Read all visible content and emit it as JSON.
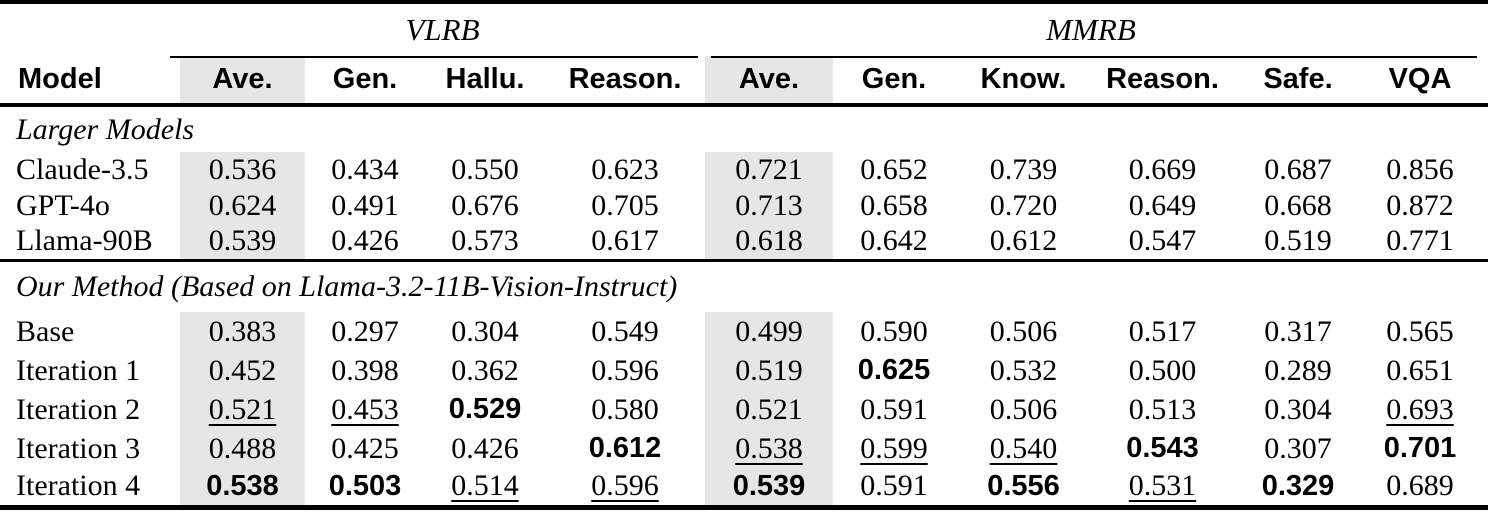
{
  "table": {
    "shade_color": "#e6e6e6",
    "text_color": "#000000",
    "groups": [
      {
        "label": "VLRB",
        "span": 4
      },
      {
        "label": "MMRB",
        "span": 6
      }
    ],
    "columns": [
      "Model",
      "Ave.",
      "Gen.",
      "Hallu.",
      "Reason.",
      "Ave.",
      "Gen.",
      "Know.",
      "Reason.",
      "Safe.",
      "VQA"
    ],
    "shaded_value_columns": [
      0,
      4
    ],
    "sections": [
      {
        "title": "Larger Models",
        "rows": [
          {
            "model": "Claude-3.5",
            "values": [
              {
                "t": "0.536",
                "s": "plain"
              },
              {
                "t": "0.434",
                "s": "plain"
              },
              {
                "t": "0.550",
                "s": "plain"
              },
              {
                "t": "0.623",
                "s": "plain"
              },
              {
                "t": "0.721",
                "s": "plain"
              },
              {
                "t": "0.652",
                "s": "plain"
              },
              {
                "t": "0.739",
                "s": "plain"
              },
              {
                "t": "0.669",
                "s": "plain"
              },
              {
                "t": "0.687",
                "s": "plain"
              },
              {
                "t": "0.856",
                "s": "plain"
              }
            ]
          },
          {
            "model": "GPT-4o",
            "values": [
              {
                "t": "0.624",
                "s": "plain"
              },
              {
                "t": "0.491",
                "s": "plain"
              },
              {
                "t": "0.676",
                "s": "plain"
              },
              {
                "t": "0.705",
                "s": "plain"
              },
              {
                "t": "0.713",
                "s": "plain"
              },
              {
                "t": "0.658",
                "s": "plain"
              },
              {
                "t": "0.720",
                "s": "plain"
              },
              {
                "t": "0.649",
                "s": "plain"
              },
              {
                "t": "0.668",
                "s": "plain"
              },
              {
                "t": "0.872",
                "s": "plain"
              }
            ]
          },
          {
            "model": "Llama-90B",
            "values": [
              {
                "t": "0.539",
                "s": "plain"
              },
              {
                "t": "0.426",
                "s": "plain"
              },
              {
                "t": "0.573",
                "s": "plain"
              },
              {
                "t": "0.617",
                "s": "plain"
              },
              {
                "t": "0.618",
                "s": "plain"
              },
              {
                "t": "0.642",
                "s": "plain"
              },
              {
                "t": "0.612",
                "s": "plain"
              },
              {
                "t": "0.547",
                "s": "plain"
              },
              {
                "t": "0.519",
                "s": "plain"
              },
              {
                "t": "0.771",
                "s": "plain"
              }
            ]
          }
        ]
      },
      {
        "title": "Our Method (Based on Llama-3.2-11B-Vision-Instruct)",
        "rows": [
          {
            "model": "Base",
            "values": [
              {
                "t": "0.383",
                "s": "plain"
              },
              {
                "t": "0.297",
                "s": "plain"
              },
              {
                "t": "0.304",
                "s": "plain"
              },
              {
                "t": "0.549",
                "s": "plain"
              },
              {
                "t": "0.499",
                "s": "plain"
              },
              {
                "t": "0.590",
                "s": "plain"
              },
              {
                "t": "0.506",
                "s": "plain"
              },
              {
                "t": "0.517",
                "s": "plain"
              },
              {
                "t": "0.317",
                "s": "plain"
              },
              {
                "t": "0.565",
                "s": "plain"
              }
            ]
          },
          {
            "model": "Iteration 1",
            "values": [
              {
                "t": "0.452",
                "s": "plain"
              },
              {
                "t": "0.398",
                "s": "plain"
              },
              {
                "t": "0.362",
                "s": "plain"
              },
              {
                "t": "0.596",
                "s": "plain"
              },
              {
                "t": "0.519",
                "s": "plain"
              },
              {
                "t": "0.625",
                "s": "bold"
              },
              {
                "t": "0.532",
                "s": "plain"
              },
              {
                "t": "0.500",
                "s": "plain"
              },
              {
                "t": "0.289",
                "s": "plain"
              },
              {
                "t": "0.651",
                "s": "plain"
              }
            ]
          },
          {
            "model": "Iteration 2",
            "values": [
              {
                "t": "0.521",
                "s": "underline"
              },
              {
                "t": "0.453",
                "s": "underline"
              },
              {
                "t": "0.529",
                "s": "bold"
              },
              {
                "t": "0.580",
                "s": "plain"
              },
              {
                "t": "0.521",
                "s": "plain"
              },
              {
                "t": "0.591",
                "s": "plain"
              },
              {
                "t": "0.506",
                "s": "plain"
              },
              {
                "t": "0.513",
                "s": "plain"
              },
              {
                "t": "0.304",
                "s": "plain"
              },
              {
                "t": "0.693",
                "s": "underline"
              }
            ]
          },
          {
            "model": "Iteration 3",
            "values": [
              {
                "t": "0.488",
                "s": "plain"
              },
              {
                "t": "0.425",
                "s": "plain"
              },
              {
                "t": "0.426",
                "s": "plain"
              },
              {
                "t": "0.612",
                "s": "bold"
              },
              {
                "t": "0.538",
                "s": "underline"
              },
              {
                "t": "0.599",
                "s": "underline"
              },
              {
                "t": "0.540",
                "s": "underline"
              },
              {
                "t": "0.543",
                "s": "bold"
              },
              {
                "t": "0.307",
                "s": "plain"
              },
              {
                "t": "0.701",
                "s": "bold"
              }
            ]
          },
          {
            "model": "Iteration 4",
            "values": [
              {
                "t": "0.538",
                "s": "bold"
              },
              {
                "t": "0.503",
                "s": "bold"
              },
              {
                "t": "0.514",
                "s": "underline"
              },
              {
                "t": "0.596",
                "s": "underline"
              },
              {
                "t": "0.539",
                "s": "bold"
              },
              {
                "t": "0.591",
                "s": "plain"
              },
              {
                "t": "0.556",
                "s": "bold"
              },
              {
                "t": "0.531",
                "s": "underline"
              },
              {
                "t": "0.329",
                "s": "bold"
              },
              {
                "t": "0.689",
                "s": "plain"
              }
            ]
          }
        ]
      }
    ]
  }
}
